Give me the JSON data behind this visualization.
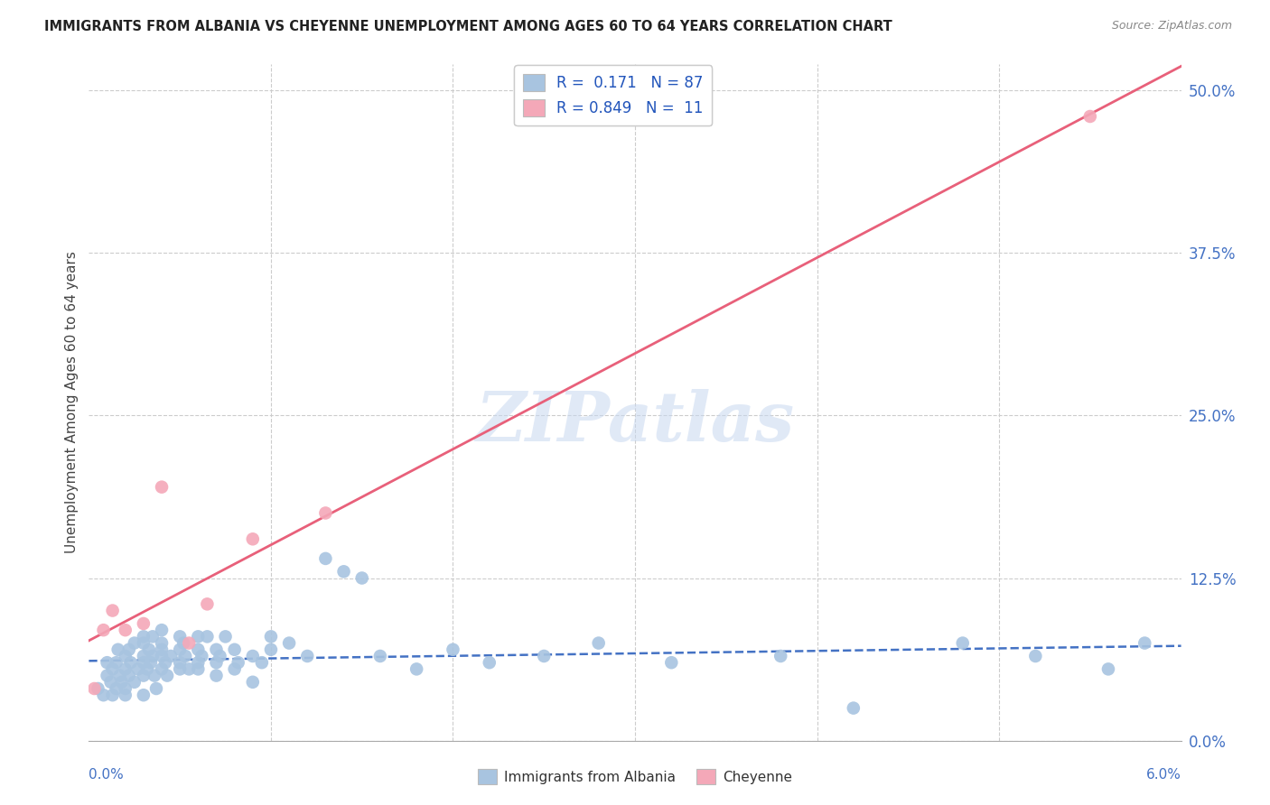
{
  "title": "IMMIGRANTS FROM ALBANIA VS CHEYENNE UNEMPLOYMENT AMONG AGES 60 TO 64 YEARS CORRELATION CHART",
  "source": "Source: ZipAtlas.com",
  "ylabel": "Unemployment Among Ages 60 to 64 years",
  "ytick_labels": [
    "0.0%",
    "12.5%",
    "25.0%",
    "37.5%",
    "50.0%"
  ],
  "ytick_values": [
    0.0,
    0.125,
    0.25,
    0.375,
    0.5
  ],
  "xtick_labels": [
    "0.0%",
    "6.0%"
  ],
  "xlim": [
    0.0,
    0.06
  ],
  "ylim": [
    0.0,
    0.52
  ],
  "r_albania": 0.171,
  "n_albania": 87,
  "r_cheyenne": 0.849,
  "n_cheyenne": 11,
  "color_albania": "#a8c4e0",
  "color_cheyenne": "#f4a8b8",
  "line_color_albania": "#4472c4",
  "line_color_cheyenne": "#e8607a",
  "watermark_color": "#c8d8f0",
  "albania_x": [
    0.0005,
    0.0008,
    0.001,
    0.001,
    0.0012,
    0.0013,
    0.0013,
    0.0015,
    0.0015,
    0.0016,
    0.0017,
    0.0018,
    0.002,
    0.002,
    0.002,
    0.002,
    0.0022,
    0.0022,
    0.0023,
    0.0025,
    0.0025,
    0.0027,
    0.003,
    0.003,
    0.003,
    0.003,
    0.003,
    0.003,
    0.0032,
    0.0033,
    0.0034,
    0.0035,
    0.0035,
    0.0036,
    0.0037,
    0.004,
    0.004,
    0.004,
    0.004,
    0.004,
    0.0042,
    0.0043,
    0.0045,
    0.005,
    0.005,
    0.005,
    0.005,
    0.0052,
    0.0053,
    0.0055,
    0.006,
    0.006,
    0.006,
    0.006,
    0.0062,
    0.0065,
    0.007,
    0.007,
    0.007,
    0.0072,
    0.0075,
    0.008,
    0.008,
    0.0082,
    0.009,
    0.009,
    0.0095,
    0.01,
    0.01,
    0.011,
    0.012,
    0.013,
    0.014,
    0.015,
    0.016,
    0.018,
    0.02,
    0.022,
    0.025,
    0.028,
    0.032,
    0.038,
    0.042,
    0.048,
    0.052,
    0.056,
    0.058
  ],
  "albania_y": [
    0.04,
    0.035,
    0.05,
    0.06,
    0.045,
    0.055,
    0.035,
    0.06,
    0.04,
    0.07,
    0.05,
    0.045,
    0.055,
    0.065,
    0.04,
    0.035,
    0.07,
    0.05,
    0.06,
    0.075,
    0.045,
    0.055,
    0.05,
    0.065,
    0.08,
    0.035,
    0.06,
    0.075,
    0.055,
    0.07,
    0.06,
    0.065,
    0.08,
    0.05,
    0.04,
    0.07,
    0.055,
    0.085,
    0.075,
    0.065,
    0.06,
    0.05,
    0.065,
    0.08,
    0.055,
    0.07,
    0.06,
    0.075,
    0.065,
    0.055,
    0.07,
    0.06,
    0.08,
    0.055,
    0.065,
    0.08,
    0.06,
    0.07,
    0.05,
    0.065,
    0.08,
    0.055,
    0.07,
    0.06,
    0.065,
    0.045,
    0.06,
    0.07,
    0.08,
    0.075,
    0.065,
    0.14,
    0.13,
    0.125,
    0.065,
    0.055,
    0.07,
    0.06,
    0.065,
    0.075,
    0.06,
    0.065,
    0.025,
    0.075,
    0.065,
    0.055,
    0.075
  ],
  "cheyenne_x": [
    0.0003,
    0.0008,
    0.0013,
    0.002,
    0.003,
    0.004,
    0.0055,
    0.0065,
    0.009,
    0.013,
    0.055
  ],
  "cheyenne_y": [
    0.04,
    0.085,
    0.1,
    0.085,
    0.09,
    0.195,
    0.075,
    0.105,
    0.155,
    0.175,
    0.48
  ],
  "albania_slope": 0.8,
  "albania_intercept": 0.058,
  "cheyenne_slope": 7.0,
  "cheyenne_intercept": 0.003
}
